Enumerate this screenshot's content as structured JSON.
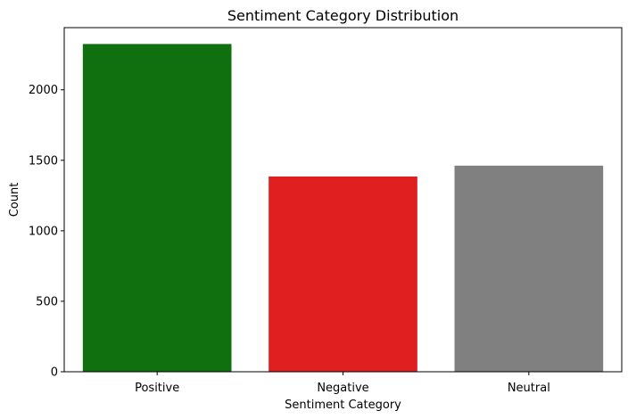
{
  "chart_data": {
    "type": "bar",
    "title": "Sentiment Category Distribution",
    "xlabel": "Sentiment Category",
    "ylabel": "Count",
    "categories": [
      "Positive",
      "Negative",
      "Neutral"
    ],
    "values": [
      2325,
      1385,
      1462
    ],
    "colors": [
      "#107010",
      "#e02020",
      "#808080"
    ],
    "ylim": [
      0,
      2441
    ],
    "yticks": [
      0,
      500,
      1000,
      1500,
      2000
    ],
    "ytick_labels": [
      "0",
      "500",
      "1000",
      "1500",
      "2000"
    ],
    "grid": false,
    "legend": "none"
  }
}
